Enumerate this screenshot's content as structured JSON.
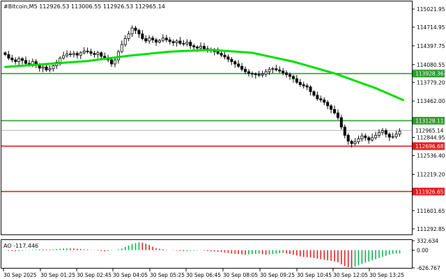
{
  "chart_data": {
    "type": "candlestick",
    "title": "#Bitcoin,M5  112926.53 113006.55 112926.53 112965.14",
    "y_ticks": [
      "115021.95",
      "114714.95",
      "114397.75",
      "114080.55",
      "113779.20",
      "113462.00",
      "113144.80",
      "112844.95",
      "112536.40",
      "112219.20",
      "111918.85",
      "111601.65",
      "111292.85"
    ],
    "x_ticks": [
      "30 Sep 2025",
      "30 Sep 01:25",
      "30 Sep 02:45",
      "30 Sep 04:05",
      "30 Sep 05:25",
      "30 Sep 06:45",
      "30 Sep 08:05",
      "30 Sep 09:25",
      "30 Sep 10:45",
      "30 Sep 12:05",
      "30 Sep 13:25"
    ],
    "ylim": [
      111210,
      115140
    ],
    "current_price": {
      "label": "112965.14",
      "value": 112965.14
    },
    "levels": [
      {
        "label": "113928.36",
        "value": 113928.36,
        "color": "#2e9c2e"
      },
      {
        "label": "113128.11",
        "value": 113128.11,
        "color": "#2e9c2e"
      },
      {
        "label": "112696.68",
        "value": 112696.68,
        "color": "#e01b1b"
      },
      {
        "label": "111926.65",
        "value": 111926.65,
        "color": "#e01b1b"
      }
    ],
    "closes": [
      114250,
      114190,
      114160,
      114130,
      114180,
      114150,
      114100,
      114080,
      114130,
      114070,
      114020,
      114040,
      113990,
      114010,
      114060,
      114120,
      114190,
      114230,
      114260,
      114250,
      114270,
      114240,
      114280,
      114310,
      114300,
      114270,
      114250,
      114280,
      114220,
      114190,
      114160,
      114090,
      114160,
      114300,
      114420,
      114520,
      114600,
      114700,
      114660,
      114600,
      114520,
      114480,
      114530,
      114500,
      114460,
      114490,
      114530,
      114500,
      114470,
      114450,
      114480,
      114440,
      114430,
      114460,
      114400,
      114380,
      114360,
      114390,
      114350,
      114330,
      114330,
      114300,
      114270,
      114240,
      114210,
      114170,
      114130,
      114090,
      114050,
      114000,
      113960,
      113930,
      113920,
      113910,
      113900,
      113920,
      113960,
      114000,
      114010,
      113990,
      113970,
      113940,
      113910,
      113880,
      113840,
      113780,
      113740,
      113720,
      113700,
      113620,
      113560,
      113500,
      113480,
      113440,
      113380,
      113320,
      113260,
      113180,
      113020,
      112880,
      112780,
      112740,
      112770,
      112820,
      112870,
      112840,
      112800,
      112840,
      112880,
      112930,
      112960,
      112900,
      112850,
      112860,
      112900,
      112950
    ],
    "ma": {
      "color": "#00dd00",
      "points": [
        [
          0,
          114040
        ],
        [
          12,
          114090
        ],
        [
          24,
          114140
        ],
        [
          36,
          114230
        ],
        [
          48,
          114300
        ],
        [
          60,
          114330
        ],
        [
          72,
          114280
        ],
        [
          84,
          114130
        ],
        [
          96,
          113930
        ],
        [
          108,
          113680
        ],
        [
          116,
          113480
        ]
      ]
    },
    "ao": {
      "label": "AO -117.446",
      "y_ticks": [
        "332.634",
        "0.00",
        "-626.767"
      ],
      "values": [
        -10,
        -25,
        -35,
        -40,
        -30,
        -18,
        -10,
        10,
        15,
        22,
        30,
        28,
        25,
        20,
        30,
        40,
        50,
        60,
        65,
        60,
        58,
        50,
        40,
        30,
        25,
        10,
        -5,
        -15,
        -35,
        -45,
        -30,
        -12,
        5,
        30,
        60,
        110,
        165,
        215,
        250,
        275,
        265,
        230,
        180,
        120,
        70,
        50,
        30,
        15,
        0,
        -10,
        -20,
        -30,
        -40,
        -35,
        -25,
        -20,
        -15,
        -10,
        -20,
        -30,
        -40,
        -50,
        -60,
        -70,
        -85,
        -100,
        -120,
        -130,
        -140,
        -150,
        -160,
        -150,
        -140,
        -130,
        -120,
        -140,
        -160,
        -150,
        -140,
        -125,
        -110,
        -100,
        -120,
        -140,
        -160,
        -190,
        -220,
        -240,
        -250,
        -260,
        -280,
        -300,
        -320,
        -340,
        -360,
        -380,
        -400,
        -430,
        -500,
        -560,
        -600,
        -620,
        -580,
        -540,
        -490,
        -440,
        -400,
        -360,
        -320,
        -280,
        -240,
        -200,
        -160,
        -130,
        -120,
        -117
      ]
    }
  }
}
